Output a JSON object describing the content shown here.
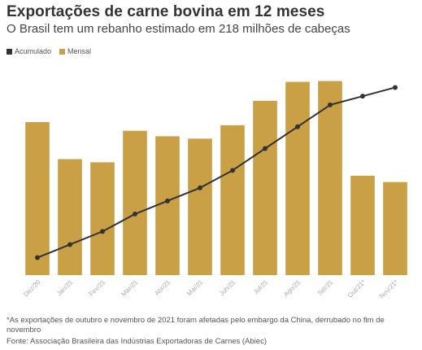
{
  "title": "Exportações de carne bovina em 12 meses",
  "subtitle": "O Brasil tem um rebanho estimado em 218 milhões de cabeças",
  "legend": [
    {
      "label": "Acumulado",
      "color": "#333333"
    },
    {
      "label": "Mensal",
      "color": "#c9a046"
    }
  ],
  "note": "*As exportações de outubro e novembro de 2021 foram afetadas pelo embargo da China, derrubado no fim de novembro",
  "source": "Fonte: Associação Brasileira das Indústrias Exportadoras de Carnes (Abiec)",
  "chart_data": {
    "type": "bar",
    "categories": [
      "Dez/20",
      "Jan/21",
      "Fev/21",
      "Mar/21",
      "Abr/21",
      "Mai/21",
      "Jun/21",
      "Jul/21",
      "Ago/21",
      "Set/21",
      "Out/21*",
      "Nov/21*"
    ],
    "series": [
      {
        "name": "Mensal",
        "type": "bar",
        "color": "#c9a046",
        "values": [
          194,
          147,
          143,
          183,
          176,
          173,
          190,
          221,
          245,
          246,
          126,
          118
        ]
      },
      {
        "name": "Acumulado",
        "type": "line",
        "color": "#333333",
        "values": [
          2.6,
          2.9,
          3.2,
          3.6,
          3.9,
          4.2,
          4.6,
          5.1,
          5.6,
          6.1,
          6.3,
          6.5
        ]
      }
    ],
    "ylim_bar": [
      0,
      260
    ],
    "ylim_line": [
      2.2,
      6.9
    ],
    "grid": false,
    "legend_position": "top-left"
  }
}
